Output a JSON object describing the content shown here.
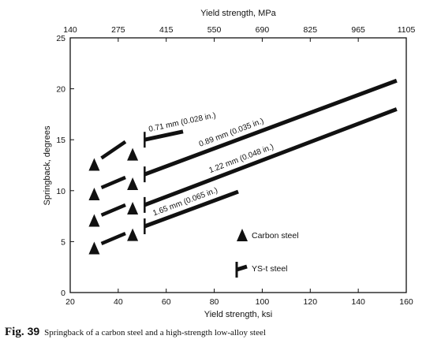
{
  "chart_data": {
    "type": "line",
    "xlabel": "Yield strength, ksi",
    "ylabel": "Springback, degrees",
    "x2label": "Yield strength, MPa",
    "xlim": [
      20,
      160
    ],
    "ylim": [
      0,
      25
    ],
    "x_ticks": [
      20,
      40,
      60,
      80,
      100,
      120,
      140,
      160
    ],
    "y_ticks": [
      0,
      5,
      10,
      15,
      20,
      25
    ],
    "top_ticks": [
      "140",
      "275",
      "415",
      "550",
      "690",
      "825",
      "965",
      "1105"
    ],
    "grid": false,
    "series": [
      {
        "name": "0.71 mm (0.028 in.)",
        "carbon_steel": [
          [
            30,
            12.5
          ],
          [
            46,
            13.5
          ]
        ],
        "carbon_line": [
          [
            33,
            13.2
          ],
          [
            43,
            14.8
          ]
        ],
        "ysts_line": [
          [
            51,
            15.0
          ],
          [
            67,
            15.8
          ]
        ]
      },
      {
        "name": "0.89 mm (0.035 in.)",
        "carbon_steel": [
          [
            30,
            9.6
          ],
          [
            46,
            10.6
          ]
        ],
        "carbon_line": [
          [
            33,
            10.3
          ],
          [
            43,
            11.3
          ]
        ],
        "ysts_line": [
          [
            51,
            11.6
          ],
          [
            156,
            20.8
          ]
        ]
      },
      {
        "name": "1.22 mm (0.048 in.)",
        "carbon_steel": [
          [
            30,
            7.0
          ],
          [
            46,
            8.2
          ]
        ],
        "carbon_line": [
          [
            33,
            7.6
          ],
          [
            43,
            8.6
          ]
        ],
        "ysts_line": [
          [
            51,
            8.6
          ],
          [
            156,
            18.0
          ]
        ]
      },
      {
        "name": "1.65 mm (0.065 in.)",
        "carbon_steel": [
          [
            30,
            4.3
          ],
          [
            46,
            5.6
          ]
        ],
        "carbon_line": [
          [
            33,
            4.8
          ],
          [
            43,
            5.8
          ]
        ],
        "ysts_line": [
          [
            51,
            6.5
          ],
          [
            90,
            9.9
          ]
        ]
      }
    ],
    "legend": [
      {
        "label": "Carbon steel",
        "symbol": "triangle"
      },
      {
        "label": "YS-t steel",
        "symbol": "bar"
      }
    ]
  },
  "caption": {
    "prefix": "Fig.",
    "number": "39",
    "text": "Springback of a carbon steel and a high-strength low-alloy steel"
  }
}
